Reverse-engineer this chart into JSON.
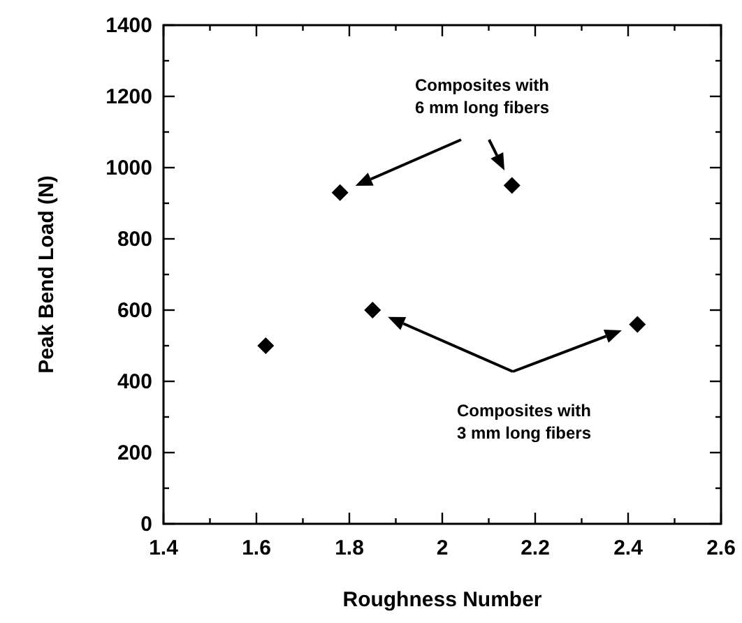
{
  "chart_data": {
    "type": "scatter",
    "xlabel": "Roughness Number",
    "ylabel": "Peak Bend Load (N)",
    "marker": "diamond",
    "grid": false,
    "x": [
      1.62,
      1.78,
      1.85,
      2.15,
      2.42
    ],
    "series": [
      {
        "color": "#000000",
        "values": [
          500,
          930,
          600,
          950,
          560
        ]
      }
    ],
    "xlim": [
      1.4,
      2.6
    ],
    "ylim": [
      0,
      1400
    ],
    "xticks": [
      {
        "value": 1.4,
        "label": "1.4"
      },
      {
        "value": 1.5,
        "label": null
      },
      {
        "value": 1.6,
        "label": "1.6"
      },
      {
        "value": 1.7,
        "label": null
      },
      {
        "value": 1.8,
        "label": "1.8"
      },
      {
        "value": 1.9,
        "label": null
      },
      2,
      {
        "value": 2.1,
        "label": null
      },
      {
        "value": 2.2,
        "label": "2.2"
      },
      {
        "value": 2.3,
        "label": null
      },
      {
        "value": 2.4,
        "label": "2.4"
      },
      {
        "value": 2.5,
        "label": null
      },
      {
        "value": 2.6,
        "label": "2.6"
      }
    ],
    "yticks": [
      0,
      {
        "value": 100,
        "label": null
      },
      200,
      {
        "value": 300,
        "label": null
      },
      400,
      {
        "value": 500,
        "label": null
      },
      600,
      {
        "value": 700,
        "label": null
      },
      800,
      {
        "value": 900,
        "label": null
      },
      1000,
      {
        "value": 1100,
        "label": null
      },
      1200,
      {
        "value": 1300,
        "label": null
      },
      1400
    ],
    "annotations": [
      "Composites with\n6 mm long fibers",
      "Composites with\n3 mm long fibers"
    ]
  }
}
